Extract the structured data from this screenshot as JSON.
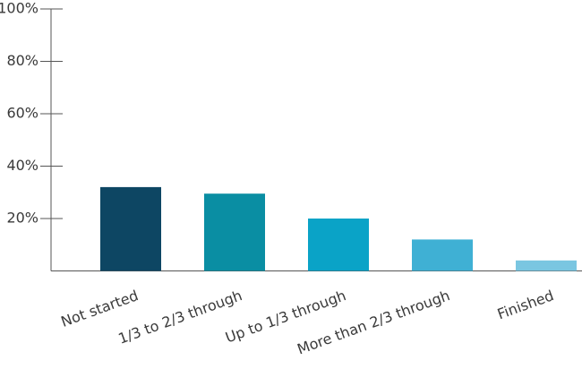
{
  "chart_data": {
    "type": "bar",
    "categories": [
      "Not started",
      "1/3 to 2/3 through",
      "Up to 1/3 through",
      "More than 2/3 through",
      "Finished"
    ],
    "values": [
      32,
      29.5,
      20,
      12,
      4
    ],
    "colors": [
      "#0d4663",
      "#0a8ea3",
      "#0aa3c7",
      "#3fb0d4",
      "#7ac6e1"
    ],
    "ylim": [
      0,
      100
    ],
    "yticks": [
      {
        "value": 20,
        "label": "20%"
      },
      {
        "value": 40,
        "label": "40%"
      },
      {
        "value": 60,
        "label": "60%"
      },
      {
        "value": 80,
        "label": "80%"
      },
      {
        "value": 100,
        "label": "100%"
      }
    ]
  }
}
